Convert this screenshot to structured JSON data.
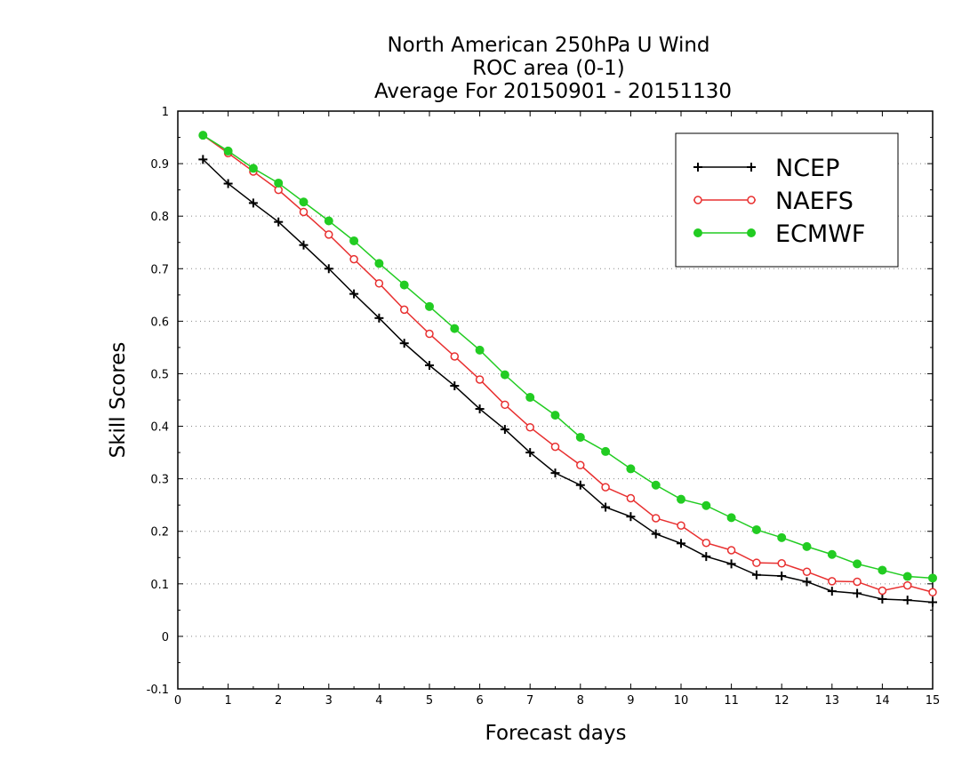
{
  "chart_data": {
    "type": "line",
    "title_lines": [
      "North American 250hPa U Wind",
      "ROC area (0-1)",
      "Average For 20150901 - 20151130"
    ],
    "xlabel": "Forecast days",
    "ylabel": "Skill Scores",
    "xlim": [
      0,
      15
    ],
    "ylim": [
      -0.1,
      1
    ],
    "x_ticks": [
      0,
      1,
      2,
      3,
      4,
      5,
      6,
      7,
      8,
      9,
      10,
      11,
      12,
      13,
      14,
      15
    ],
    "x_tick_labels": [
      "0",
      "1",
      "2",
      "3",
      "4",
      "5",
      "6",
      "7",
      "8",
      "9",
      "10",
      "11",
      "12",
      "13",
      "14",
      "15"
    ],
    "y_ticks": [
      -0.1,
      0,
      0.1,
      0.2,
      0.3,
      0.4,
      0.5,
      0.6,
      0.7,
      0.8,
      0.9,
      1
    ],
    "y_tick_labels": [
      "-0.1",
      "0",
      "0.1",
      "0.2",
      "0.3",
      "0.4",
      "0.5",
      "0.6",
      "0.7",
      "0.8",
      "0.9",
      "1"
    ],
    "grid": "horizontal dotted",
    "legend_position": "top-right",
    "x": [
      0.5,
      1,
      1.5,
      2,
      2.5,
      3,
      3.5,
      4,
      4.5,
      5,
      5.5,
      6,
      6.5,
      7,
      7.5,
      8,
      8.5,
      9,
      9.5,
      10,
      10.5,
      11,
      11.5,
      12,
      12.5,
      13,
      13.5,
      14,
      14.5,
      15
    ],
    "series": [
      {
        "name": "NCEP",
        "color": "#000000",
        "marker": "plus",
        "values": [
          0.908,
          0.862,
          0.825,
          0.789,
          0.745,
          0.7,
          0.652,
          0.606,
          0.558,
          0.516,
          0.477,
          0.433,
          0.394,
          0.35,
          0.311,
          0.288,
          0.246,
          0.228,
          0.195,
          0.177,
          0.152,
          0.138,
          0.117,
          0.115,
          0.104,
          0.086,
          0.082,
          0.071,
          0.069,
          0.065
        ]
      },
      {
        "name": "NAEFS",
        "color": "#e83030",
        "marker": "open-circle",
        "values": [
          0.954,
          0.92,
          0.885,
          0.85,
          0.808,
          0.765,
          0.718,
          0.672,
          0.622,
          0.576,
          0.533,
          0.489,
          0.441,
          0.398,
          0.361,
          0.326,
          0.284,
          0.263,
          0.225,
          0.211,
          0.178,
          0.164,
          0.14,
          0.139,
          0.123,
          0.105,
          0.104,
          0.087,
          0.097,
          0.084
        ]
      },
      {
        "name": "ECMWF",
        "color": "#22cc22",
        "marker": "filled-circle",
        "values": [
          0.954,
          0.924,
          0.891,
          0.863,
          0.827,
          0.791,
          0.753,
          0.71,
          0.669,
          0.628,
          0.586,
          0.545,
          0.498,
          0.455,
          0.421,
          0.379,
          0.352,
          0.319,
          0.288,
          0.261,
          0.249,
          0.226,
          0.203,
          0.188,
          0.171,
          0.156,
          0.138,
          0.126,
          0.114,
          0.111
        ]
      }
    ]
  }
}
